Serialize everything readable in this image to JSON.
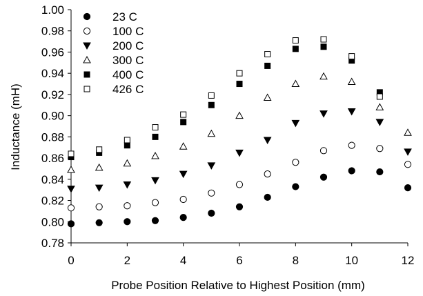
{
  "chart_data": {
    "type": "scatter",
    "xlabel": "Probe Position Relative to Highest Position (mm)",
    "ylabel": "Inductance (mH)",
    "xlim": [
      0,
      12
    ],
    "ylim": [
      0.78,
      1.0
    ],
    "xticks": [
      0,
      2,
      4,
      6,
      8,
      10,
      12
    ],
    "yticks": [
      0.78,
      0.8,
      0.82,
      0.84,
      0.86,
      0.88,
      0.9,
      0.92,
      0.94,
      0.96,
      0.98,
      1.0
    ],
    "ytick_labels": [
      "0.78",
      "0.80",
      "0.82",
      "0.84",
      "0.86",
      "0.88",
      "0.90",
      "0.92",
      "0.94",
      "0.96",
      "0.98",
      "1.00"
    ],
    "legend_position": "top-left",
    "grid": false,
    "x": [
      0,
      1,
      2,
      3,
      4,
      5,
      6,
      7,
      8,
      9,
      10,
      11,
      12
    ],
    "series": [
      {
        "name": "23 C",
        "marker": "filled-circle",
        "values": [
          0.798,
          0.799,
          0.8,
          0.801,
          0.804,
          0.808,
          0.814,
          0.823,
          0.833,
          0.842,
          0.848,
          0.847,
          0.832
        ]
      },
      {
        "name": "100 C",
        "marker": "open-circle",
        "values": [
          0.813,
          0.814,
          0.815,
          0.818,
          0.821,
          0.827,
          0.835,
          0.845,
          0.856,
          0.867,
          0.872,
          0.869,
          0.854
        ]
      },
      {
        "name": "200 C",
        "marker": "filled-triangle-down",
        "values": [
          0.831,
          0.832,
          0.835,
          0.839,
          0.845,
          0.853,
          0.865,
          0.877,
          0.893,
          0.902,
          0.904,
          0.894,
          0.866
        ]
      },
      {
        "name": "300 C",
        "marker": "open-triangle-up",
        "values": [
          0.849,
          0.851,
          0.855,
          0.862,
          0.871,
          0.883,
          0.9,
          0.917,
          0.93,
          0.937,
          0.932,
          0.908,
          0.884
        ]
      },
      {
        "name": "400 C",
        "marker": "filled-square",
        "values": [
          0.861,
          0.865,
          0.872,
          0.88,
          0.894,
          0.91,
          0.93,
          0.947,
          0.963,
          0.965,
          0.952,
          0.922,
          null
        ]
      },
      {
        "name": "426 C",
        "marker": "open-square",
        "values": [
          0.864,
          0.868,
          0.877,
          0.889,
          0.901,
          0.919,
          0.94,
          0.958,
          0.971,
          0.972,
          0.956,
          0.918,
          null
        ]
      }
    ]
  }
}
